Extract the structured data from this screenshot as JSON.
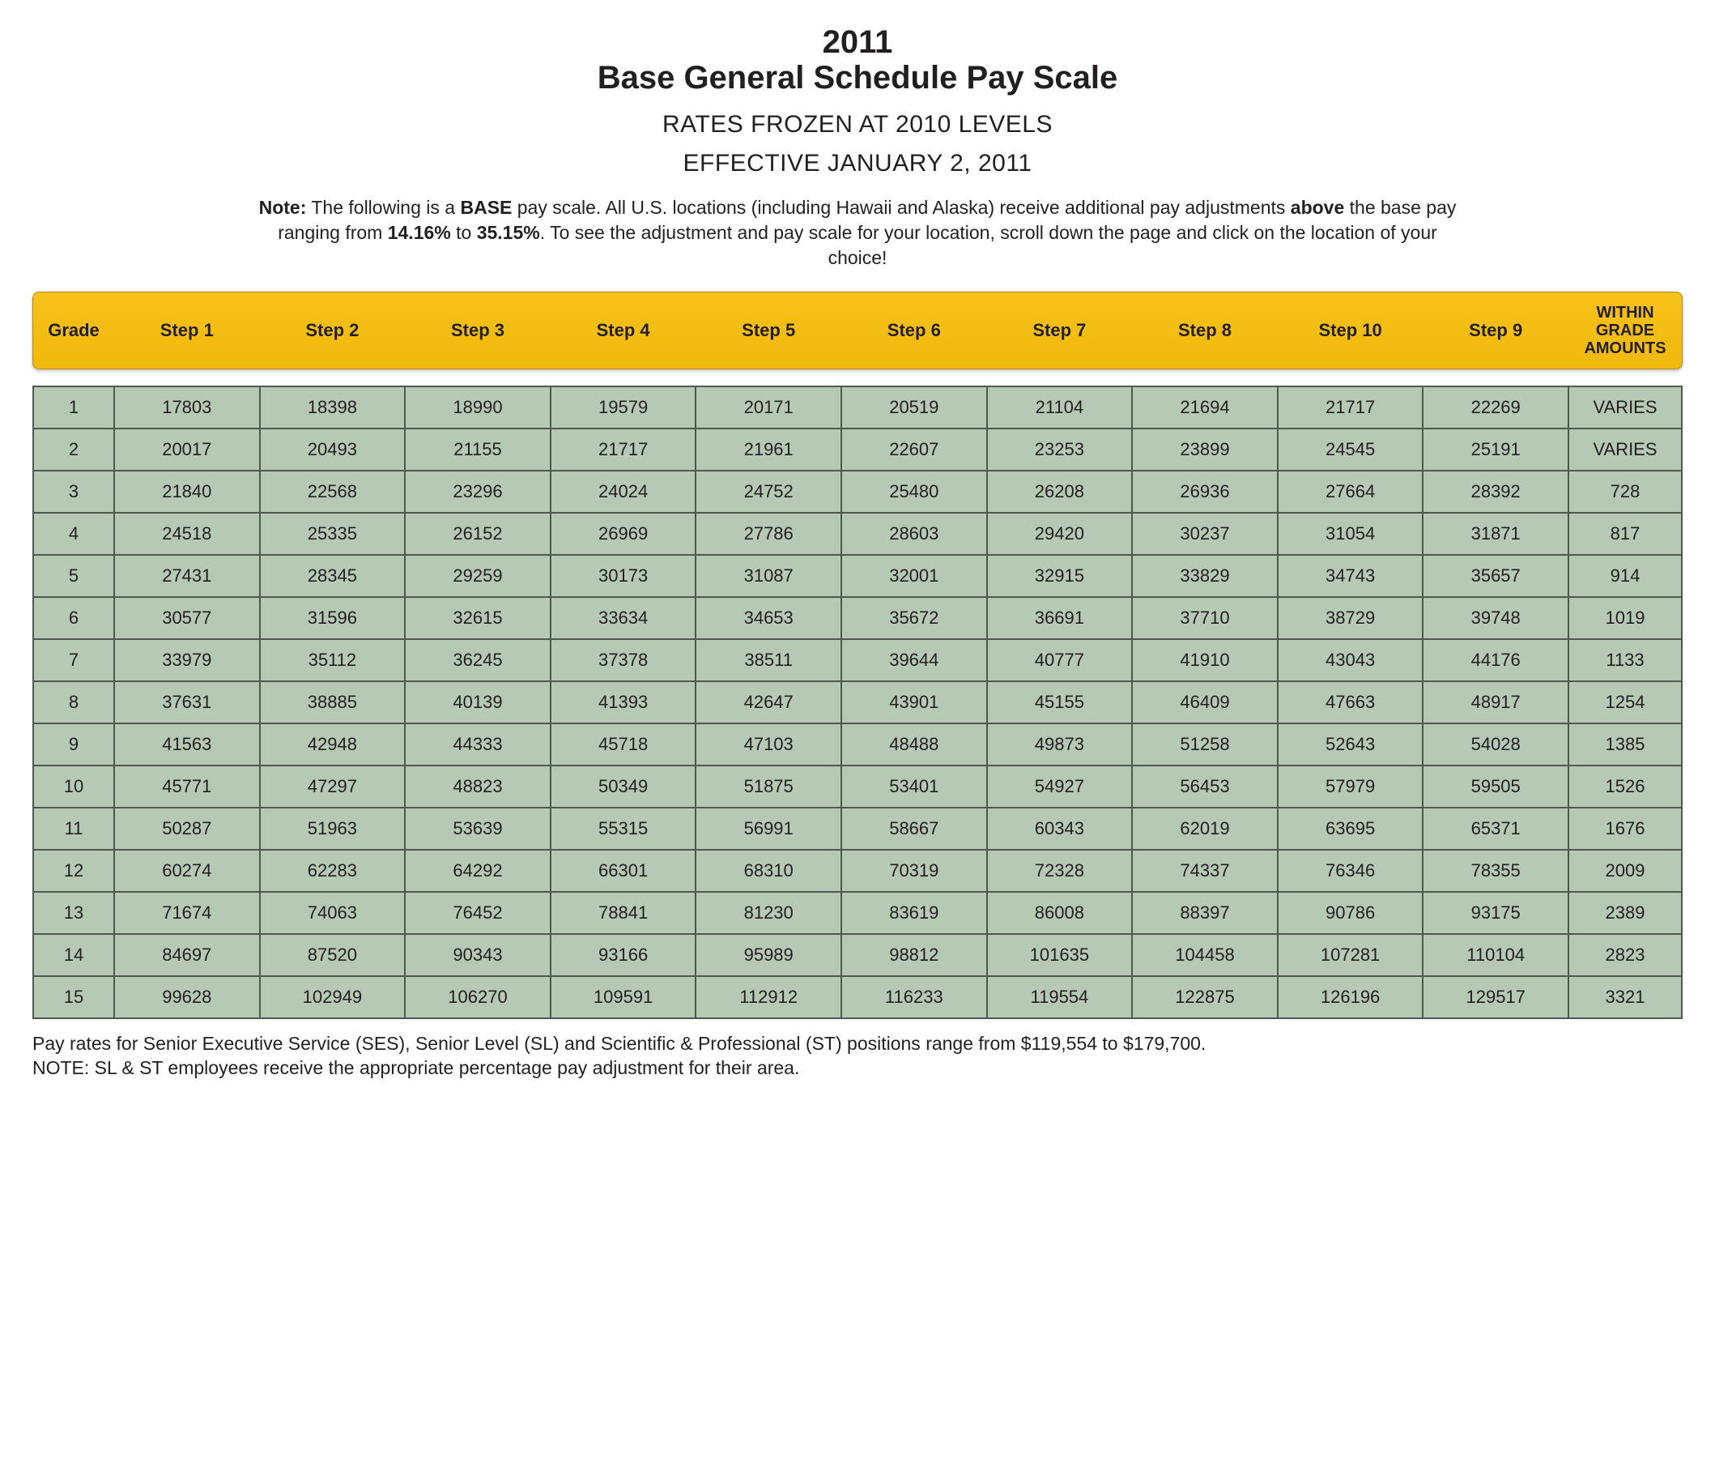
{
  "title": {
    "year": "2011",
    "main": "Base General Schedule Pay Scale",
    "sub1": "RATES FROZEN AT 2010 LEVELS",
    "sub2": "EFFECTIVE JANUARY 2, 2011"
  },
  "note": {
    "lead": "Note:",
    "t1": " The following is a ",
    "b1": "BASE",
    "t2": " pay scale.  All U.S. locations (including Hawaii and Alaska) receive additional pay adjustments ",
    "b2": "above",
    "t3": " the base pay ranging from ",
    "b3": "14.16%",
    "t4": " to ",
    "b4": "35.15%",
    "t5": ". To see the adjustment and pay scale for your location, scroll down the page and click on the location of your choice!"
  },
  "columns": [
    "Grade",
    "Step 1",
    "Step 2",
    "Step 3",
    "Step 4",
    "Step 5",
    "Step 6",
    "Step 7",
    "Step 8",
    "Step 10",
    "Step 9",
    "WITHIN GRADE AMOUNTS"
  ],
  "rows": [
    [
      "1",
      "17803",
      "18398",
      "18990",
      "19579",
      "20171",
      "20519",
      "21104",
      "21694",
      "21717",
      "22269",
      "VARIES"
    ],
    [
      "2",
      "20017",
      "20493",
      "21155",
      "21717",
      "21961",
      "22607",
      "23253",
      "23899",
      "24545",
      "25191",
      "VARIES"
    ],
    [
      "3",
      "21840",
      "22568",
      "23296",
      "24024",
      "24752",
      "25480",
      "26208",
      "26936",
      "27664",
      "28392",
      "728"
    ],
    [
      "4",
      "24518",
      "25335",
      "26152",
      "26969",
      "27786",
      "28603",
      "29420",
      "30237",
      "31054",
      "31871",
      "817"
    ],
    [
      "5",
      "27431",
      "28345",
      "29259",
      "30173",
      "31087",
      "32001",
      "32915",
      "33829",
      "34743",
      "35657",
      "914"
    ],
    [
      "6",
      "30577",
      "31596",
      "32615",
      "33634",
      "34653",
      "35672",
      "36691",
      "37710",
      "38729",
      "39748",
      "1019"
    ],
    [
      "7",
      "33979",
      "35112",
      "36245",
      "37378",
      "38511",
      "39644",
      "40777",
      "41910",
      "43043",
      "44176",
      "1133"
    ],
    [
      "8",
      "37631",
      "38885",
      "40139",
      "41393",
      "42647",
      "43901",
      "45155",
      "46409",
      "47663",
      "48917",
      "1254"
    ],
    [
      "9",
      "41563",
      "42948",
      "44333",
      "45718",
      "47103",
      "48488",
      "49873",
      "51258",
      "52643",
      "54028",
      "1385"
    ],
    [
      "10",
      "45771",
      "47297",
      "48823",
      "50349",
      "51875",
      "53401",
      "54927",
      "56453",
      "57979",
      "59505",
      "1526"
    ],
    [
      "11",
      "50287",
      "51963",
      "53639",
      "55315",
      "56991",
      "58667",
      "60343",
      "62019",
      "63695",
      "65371",
      "1676"
    ],
    [
      "12",
      "60274",
      "62283",
      "64292",
      "66301",
      "68310",
      "70319",
      "72328",
      "74337",
      "76346",
      "78355",
      "2009"
    ],
    [
      "13",
      "71674",
      "74063",
      "76452",
      "78841",
      "81230",
      "83619",
      "86008",
      "88397",
      "90786",
      "93175",
      "2389"
    ],
    [
      "14",
      "84697",
      "87520",
      "90343",
      "93166",
      "95989",
      "98812",
      "101635",
      "104458",
      "107281",
      "110104",
      "2823"
    ],
    [
      "15",
      "99628",
      "102949",
      "106270",
      "109591",
      "112912",
      "116233",
      "119554",
      "122875",
      "126196",
      "129517",
      "3321"
    ]
  ],
  "footnote": {
    "line1": "Pay rates for Senior Executive Service (SES), Senior Level (SL) and Scientific & Professional (ST) positions range from $119,554 to $179,700.",
    "line2": "NOTE: SL & ST employees receive the appropriate percentage pay adjustment for their area."
  },
  "style": {
    "header_bg_top": "#f7c21a",
    "header_bg_bot": "#f2b90c",
    "header_border": "#b0872a",
    "cell_bg": "#b6c9b5",
    "cell_border": "#4d5a4d",
    "text_color": "#231f20",
    "page_bg": "#ffffff",
    "title_fontsize": 40,
    "subtitle_fontsize": 30,
    "note_fontsize": 23,
    "header_fontsize": 22,
    "cell_fontsize": 22,
    "footnote_fontsize": 23
  }
}
